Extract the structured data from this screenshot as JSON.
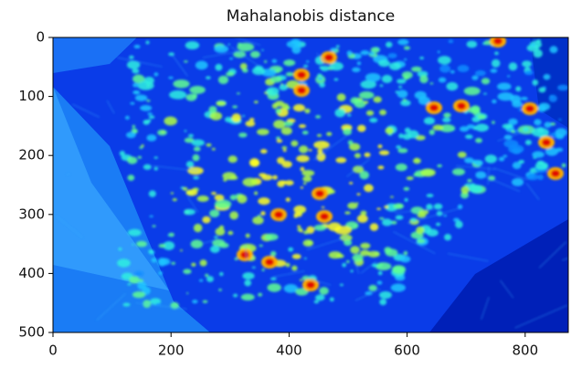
{
  "chart_data": {
    "type": "image",
    "title": "Mahalanobis distance",
    "xlim": [
      0,
      873
    ],
    "ylim": [
      500,
      0
    ],
    "xticks": [
      0,
      200,
      400,
      600,
      800
    ],
    "yticks": [
      0,
      100,
      200,
      300,
      400,
      500
    ],
    "colormap": "jet"
  }
}
